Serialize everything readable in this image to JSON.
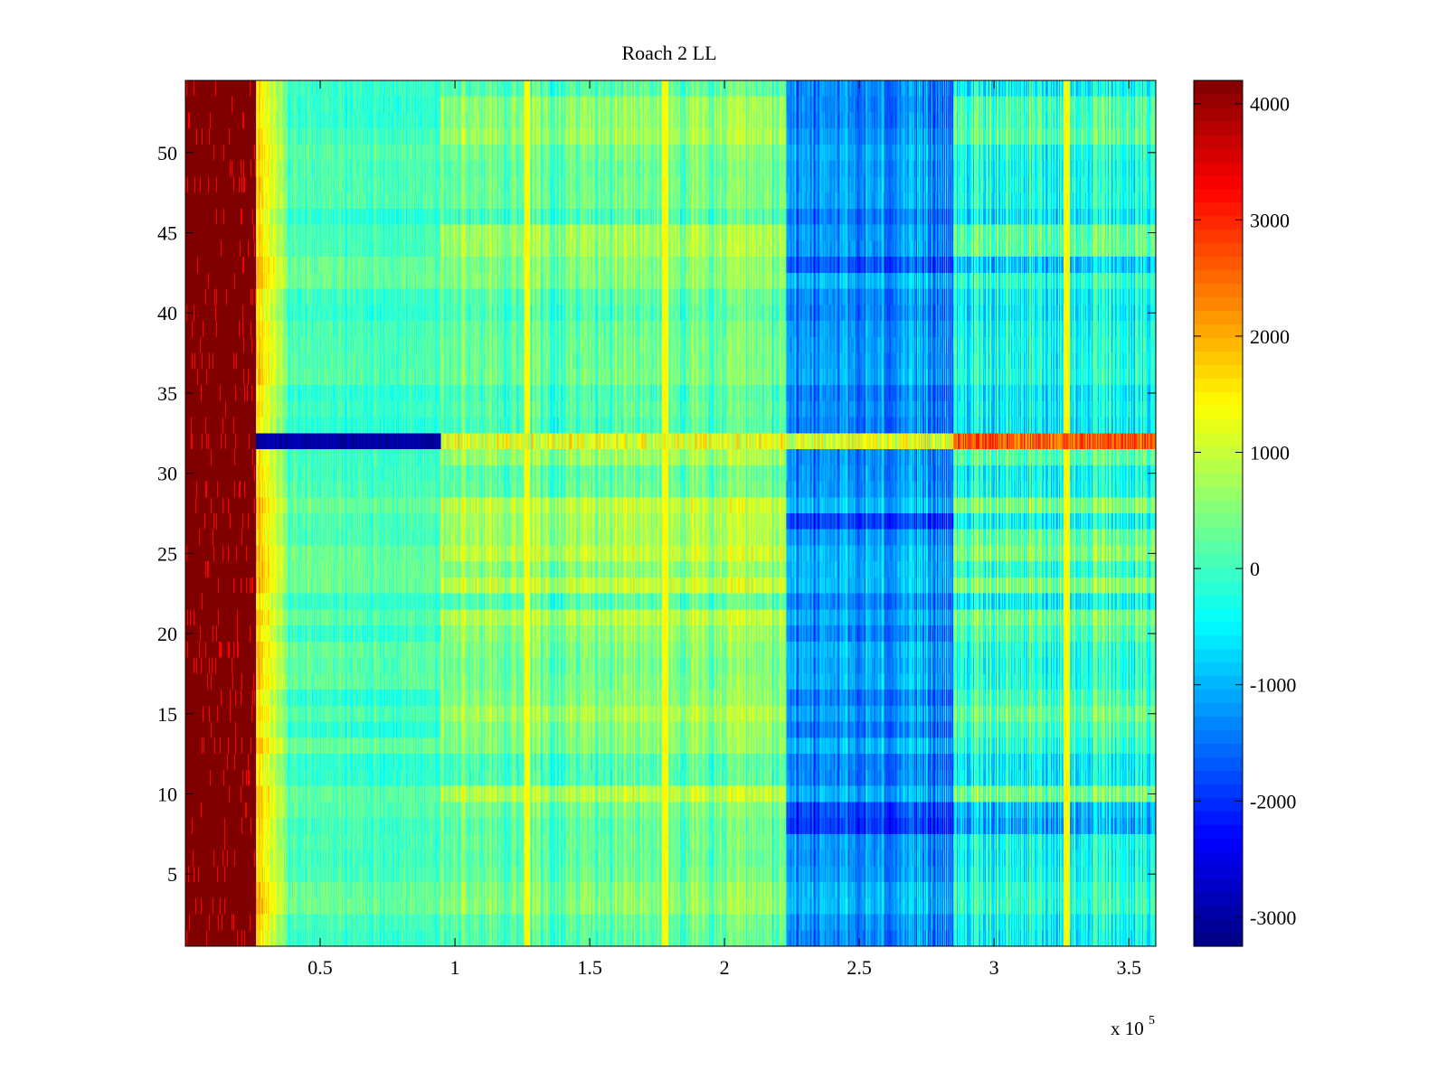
{
  "chart_data": {
    "type": "heatmap",
    "title": "Roach 2 LL",
    "xlabel": "",
    "ylabel": "",
    "x_multiplier_label": "x 10",
    "x_multiplier_exponent": "5",
    "xlim": [
      0,
      3.6
    ],
    "ylim": [
      0.5,
      54.5
    ],
    "x_ticks": [
      0.5,
      1,
      1.5,
      2,
      2.5,
      3,
      3.5
    ],
    "x_tick_labels": [
      "0.5",
      "1",
      "1.5",
      "2",
      "2.5",
      "3",
      "3.5"
    ],
    "y_ticks": [
      5,
      10,
      15,
      20,
      25,
      30,
      35,
      40,
      45,
      50
    ],
    "y_tick_labels": [
      "5",
      "10",
      "15",
      "20",
      "25",
      "30",
      "35",
      "40",
      "45",
      "50"
    ],
    "rows": 54,
    "colormap": "jet",
    "clim": [
      -3250,
      4200
    ],
    "colorbar_ticks": [
      4000,
      3000,
      2000,
      1000,
      0,
      -1000,
      -2000,
      -3000
    ],
    "colorbar_tick_labels": [
      "4000",
      "3000",
      "2000",
      "1000",
      "0",
      "-1000",
      "-2000",
      "-3000"
    ],
    "regions": [
      {
        "x_start": 0.0,
        "x_end": 0.26,
        "mean_value": 4200,
        "description": "saturated start"
      },
      {
        "x_start": 0.26,
        "x_end": 0.38,
        "mean_value": 1200
      },
      {
        "x_start": 0.38,
        "x_end": 0.95,
        "mean_value": 100
      },
      {
        "x_start": 0.95,
        "x_end": 2.23,
        "mean_value": 300
      },
      {
        "x_start": 2.23,
        "x_end": 2.85,
        "mean_value": -1200
      },
      {
        "x_start": 2.85,
        "x_end": 3.6,
        "mean_value": -300
      }
    ],
    "bright_columns": [
      1.27,
      1.78,
      3.27
    ],
    "anomalous_row": {
      "y": 32,
      "description": "low before x=0.95e5, high after 2.85e5"
    },
    "warm_band_rows": [
      10,
      14,
      15,
      16,
      20,
      21,
      23,
      25,
      26,
      27,
      28,
      31,
      44,
      45,
      51,
      52,
      53
    ],
    "cold_band_rows": [
      8,
      9,
      27,
      43
    ]
  }
}
